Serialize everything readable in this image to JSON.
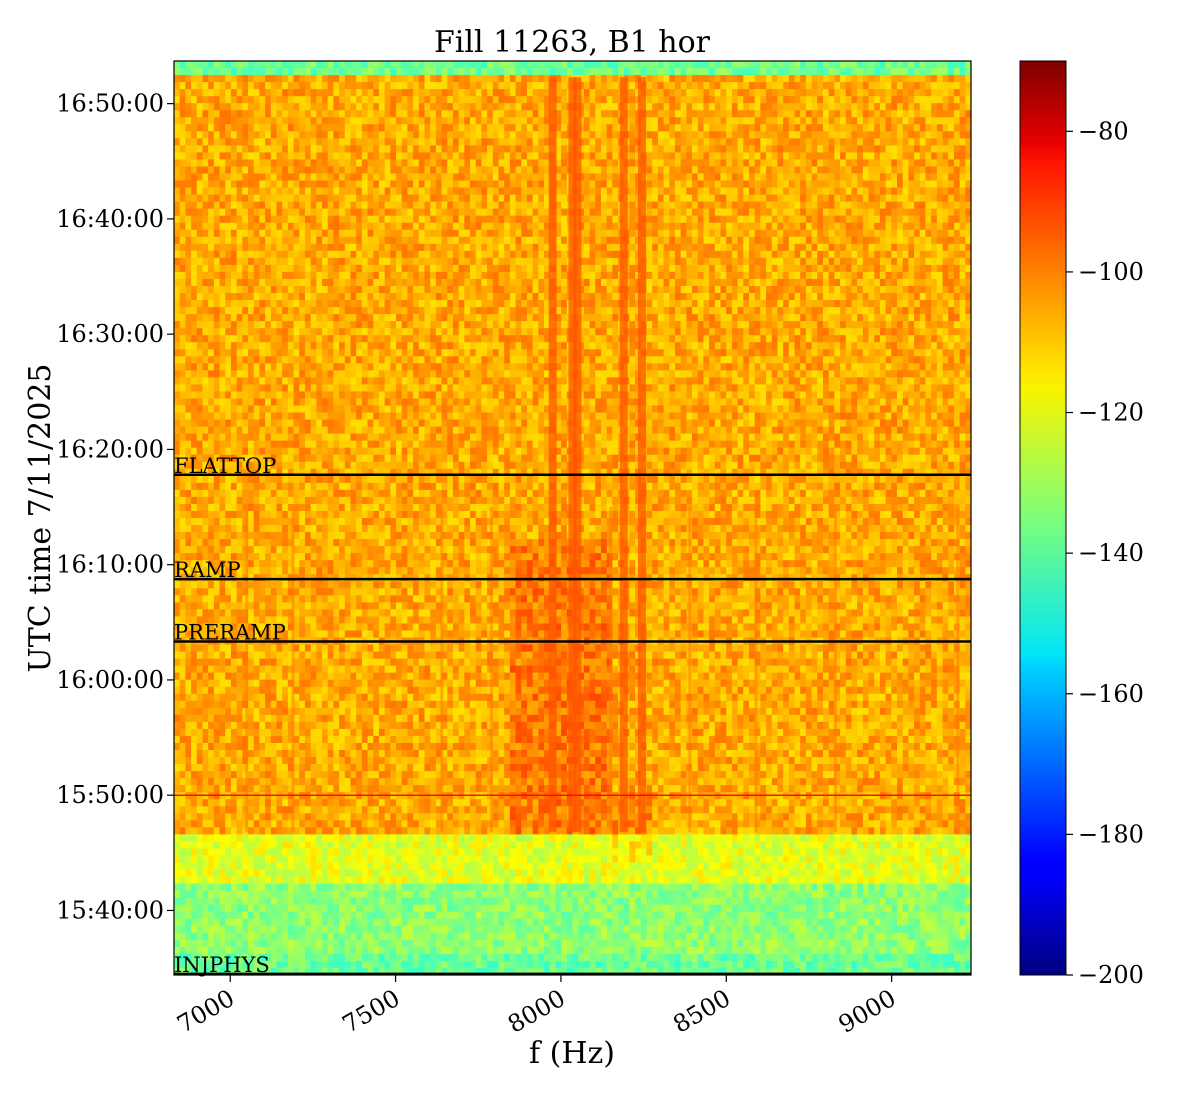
{
  "chart_data": {
    "type": "heatmap",
    "title": "Fill 11263, B1 hor",
    "xlabel": "f (Hz)",
    "ylabel": "UTC time 7/11/2025",
    "xlim": [
      6830,
      9240
    ],
    "ylim_minutes_of_day": [
      934.4,
      1013.7
    ],
    "x_ticks": [
      {
        "value": 7000,
        "label": "7000"
      },
      {
        "value": 7500,
        "label": "7500"
      },
      {
        "value": 8000,
        "label": "8000"
      },
      {
        "value": 8500,
        "label": "8500"
      },
      {
        "value": 9000,
        "label": "9000"
      }
    ],
    "y_ticks": [
      {
        "value": 940,
        "label": "15:40:00"
      },
      {
        "value": 950,
        "label": "15:50:00"
      },
      {
        "value": 960,
        "label": "16:00:00"
      },
      {
        "value": 970,
        "label": "16:10:00"
      },
      {
        "value": 980,
        "label": "16:20:00"
      },
      {
        "value": 990,
        "label": "16:30:00"
      },
      {
        "value": 1000,
        "label": "16:40:00"
      },
      {
        "value": 1010,
        "label": "16:50:00"
      }
    ],
    "colorbar": {
      "colormap": "jet",
      "range": [
        -200,
        -70
      ],
      "ticks": [
        -80,
        -100,
        -120,
        -140,
        -160,
        -180,
        -200
      ],
      "tick_labels": [
        "−80",
        "−100",
        "−120",
        "−140",
        "−160",
        "−180",
        "−200"
      ]
    },
    "phase_markers": [
      {
        "label": "FLATTOP",
        "time": "16:17:50",
        "value": 977.8
      },
      {
        "label": "RAMP",
        "time": "16:08:45",
        "value": 968.75
      },
      {
        "label": "PRERAMP",
        "time": "16:03:20",
        "value": 963.33
      },
      {
        "label": "INJPHYS",
        "time": "15:34:30",
        "value": 934.5
      }
    ],
    "features": {
      "strong_lines_hz": [
        7975,
        8035,
        8050,
        8190,
        8245
      ],
      "weak_lines_hz": [
        7050,
        7190,
        7640,
        7790,
        8150,
        8390,
        8590,
        8830,
        9200
      ],
      "beam_start_minutes": 946.8,
      "horizontal_disturbance_minutes": 950.0
    }
  }
}
